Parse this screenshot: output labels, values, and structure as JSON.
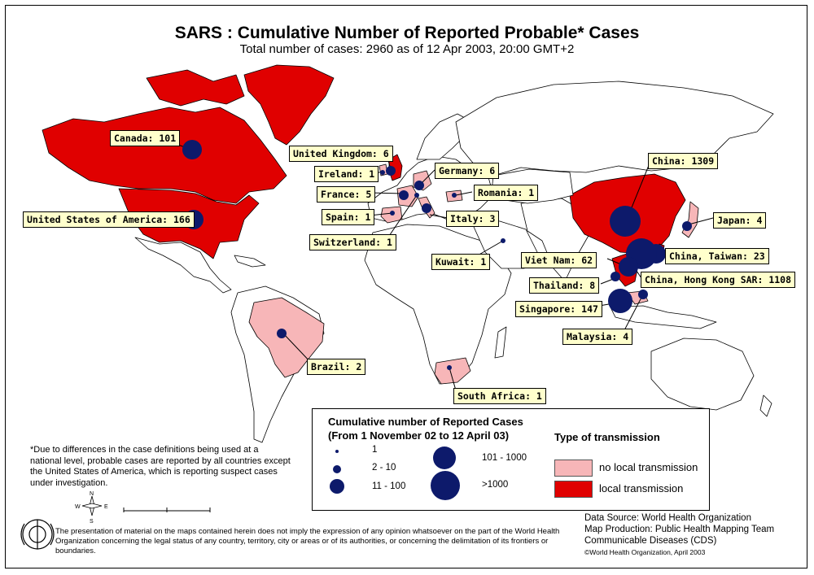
{
  "title": "SARS : Cumulative Number of Reported Probable* Cases",
  "subtitle": "Total number of cases: 2960 as of 12 Apr 2003, 20:00 GMT+2",
  "colors": {
    "local_transmission": "#e00000",
    "no_local_transmission": "#f7b6b8",
    "case_marker": "#0d1a6b",
    "label_background": "#ffffcc"
  },
  "country_labels": [
    {
      "id": "canada",
      "text": "Canada: 101",
      "cases": 101
    },
    {
      "id": "usa",
      "text": "United States of America: 166",
      "cases": 166
    },
    {
      "id": "uk",
      "text": "United Kingdom: 6",
      "cases": 6
    },
    {
      "id": "ireland",
      "text": "Ireland: 1",
      "cases": 1
    },
    {
      "id": "france",
      "text": "France: 5",
      "cases": 5
    },
    {
      "id": "spain",
      "text": "Spain: 1",
      "cases": 1
    },
    {
      "id": "switzerland",
      "text": "Switzerland: 1",
      "cases": 1
    },
    {
      "id": "germany",
      "text": "Germany: 6",
      "cases": 6
    },
    {
      "id": "romania",
      "text": "Romania: 1",
      "cases": 1
    },
    {
      "id": "italy",
      "text": "Italy: 3",
      "cases": 3
    },
    {
      "id": "kuwait",
      "text": "Kuwait: 1",
      "cases": 1
    },
    {
      "id": "china",
      "text": "China: 1309",
      "cases": 1309
    },
    {
      "id": "japan",
      "text": "Japan: 4",
      "cases": 4
    },
    {
      "id": "taiwan",
      "text": "China, Taiwan: 23",
      "cases": 23
    },
    {
      "id": "vietnam",
      "text": "Viet Nam: 62",
      "cases": 62
    },
    {
      "id": "hongkong",
      "text": "China, Hong Kong SAR: 1108",
      "cases": 1108
    },
    {
      "id": "thailand",
      "text": "Thailand: 8",
      "cases": 8
    },
    {
      "id": "singapore",
      "text": "Singapore: 147",
      "cases": 147
    },
    {
      "id": "malaysia",
      "text": "Malaysia: 4",
      "cases": 4
    },
    {
      "id": "brazil",
      "text": "Brazil: 2",
      "cases": 2
    },
    {
      "id": "southafrica",
      "text": "South Africa: 1",
      "cases": 1
    }
  ],
  "legend": {
    "size_title_1": "Cumulative number of Reported Cases",
    "size_title_2": "(From 1 November 02 to 12 April 03)",
    "sizes": [
      "1",
      "2 - 10",
      "11 - 100",
      "101 - 1000",
      ">1000"
    ],
    "transmission_title": "Type of transmission",
    "transmission": [
      "no local transmission",
      "local transmission"
    ]
  },
  "footnote": "*Due to differences in the case definitions being used at a national level, probable cases are reported by all countries except the United States of America, which is reporting suspect cases under investigation.",
  "disclaimer": "The presentation of material on the maps contained herein does not imply the expression of any opinion whatsoever on the part of the World Health Organization concerning the legal status of any country, territory, city or areas or of its authorities, or concerning the delimitation of its frontiers or boundaries.",
  "credits": {
    "source": "Data Source: World Health Organization",
    "production": "Map Production: Public Health Mapping Team",
    "unit": "Communicable Diseases (CDS)",
    "copyright": "©World Health Organization, April 2003"
  }
}
